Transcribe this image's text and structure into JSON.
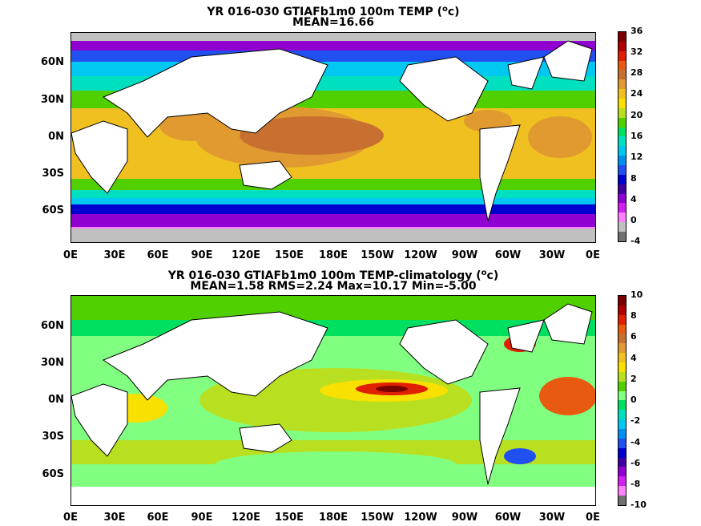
{
  "top_panel": {
    "title_main": "YR 016-030 GTIAFb1m0 100m TEMP (",
    "title_sup": "o",
    "title_end": "c)",
    "subtitle": "MEAN=16.66",
    "x_ticks": [
      "0E",
      "30E",
      "60E",
      "90E",
      "120E",
      "150E",
      "180E",
      "150W",
      "120W",
      "90W",
      "60W",
      "30W",
      "0E"
    ],
    "y_ticks": [
      "60N",
      "30N",
      "0N",
      "30S",
      "60S"
    ],
    "colorbar": {
      "labels": [
        "36",
        "32",
        "28",
        "24",
        "20",
        "16",
        "12",
        "8",
        "4",
        "0",
        "-4"
      ],
      "colors": [
        "#7a0000",
        "#b00000",
        "#e02000",
        "#e85a10",
        "#c87030",
        "#e09a30",
        "#f0c020",
        "#f8e000",
        "#b8e020",
        "#50d000",
        "#00e060",
        "#00e0c0",
        "#00c8f0",
        "#0090f0",
        "#2050f0",
        "#0000d0",
        "#4000a0",
        "#9000d0",
        "#d020f0",
        "#ff80ff",
        "#c0c0c0",
        "#707070"
      ]
    }
  },
  "bottom_panel": {
    "title_main": "YR 016-030 GTIAFb1m0 100m TEMP-climatology (",
    "title_sup": "o",
    "title_end": "c)",
    "subtitle": "MEAN=1.58   RMS=2.24   Max=10.17   Min=-5.00",
    "x_ticks": [
      "0E",
      "30E",
      "60E",
      "90E",
      "120E",
      "150E",
      "180E",
      "150W",
      "120W",
      "90W",
      "60W",
      "30W",
      "0E"
    ],
    "y_ticks": [
      "60N",
      "30N",
      "0N",
      "30S",
      "60S"
    ],
    "colorbar": {
      "labels": [
        "10",
        "8",
        "6",
        "4",
        "2",
        "0",
        "-2",
        "-4",
        "-6",
        "-8",
        "-10"
      ],
      "colors": [
        "#7a0000",
        "#b00000",
        "#e02000",
        "#e85a10",
        "#c87030",
        "#e09a30",
        "#f0c020",
        "#f8e000",
        "#b8e020",
        "#50d000",
        "#80ff80",
        "#00e060",
        "#00e0c0",
        "#00c8f0",
        "#0090f0",
        "#2050f0",
        "#0000d0",
        "#4000a0",
        "#9000d0",
        "#d020f0",
        "#ff80ff",
        "#707070"
      ]
    }
  }
}
